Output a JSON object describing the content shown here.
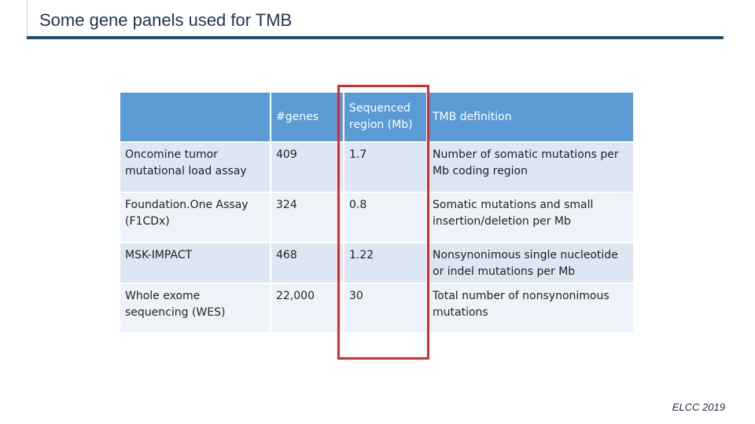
{
  "slide": {
    "title": "Some gene panels used for TMB",
    "footer": "ELCC 2019"
  },
  "table": {
    "headers": [
      "",
      "#genes",
      "Sequenced region (Mb)",
      "TMB definition"
    ],
    "rows": [
      [
        "Oncomine tumor mutational load assay",
        "409",
        "1.7",
        "Number of somatic mutations per Mb coding region"
      ],
      [
        "Foundation.One Assay (F1CDx)",
        "324",
        "0.8",
        "Somatic mutations and small insertion/deletion per Mb"
      ],
      [
        "MSK-IMPACT",
        "468",
        "1.22",
        "Nonsynonimous single nucleotide or indel mutations per Mb"
      ],
      [
        "Whole exome sequencing (WES)",
        "22,000",
        "30",
        "Total number of nonsynonimous mutations"
      ]
    ]
  },
  "colors": {
    "title_bar": "#1f4e79",
    "header_bg": "#5b9bd5",
    "row_dark": "#dde7f3",
    "row_light": "#eef3fa",
    "highlight": "#d62b2b"
  }
}
